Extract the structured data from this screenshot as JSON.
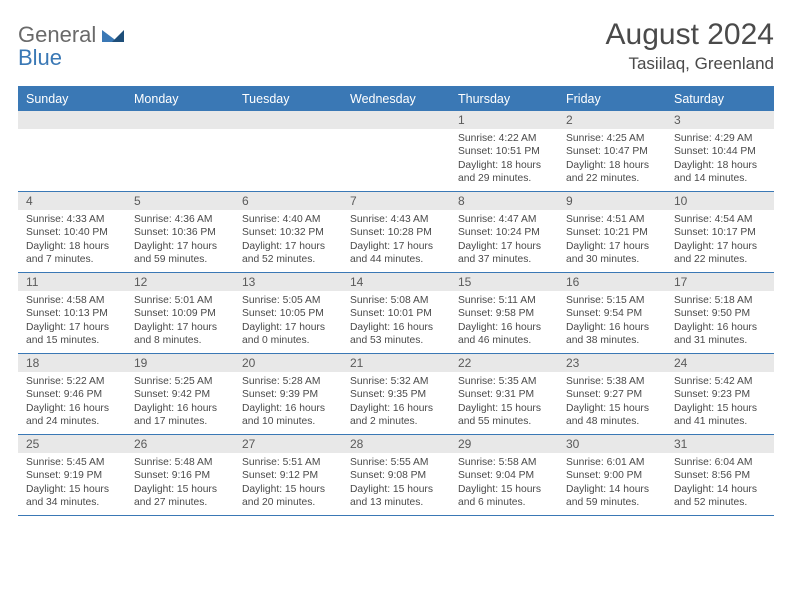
{
  "logo": {
    "general": "General",
    "blue": "Blue"
  },
  "title": "August 2024",
  "location": "Tasiilaq, Greenland",
  "colors": {
    "header_bg": "#3a78b5",
    "header_text": "#ffffff",
    "daynum_bg": "#e8e8e8",
    "border": "#3a78b5",
    "text": "#4a4a4a"
  },
  "dow": [
    "Sunday",
    "Monday",
    "Tuesday",
    "Wednesday",
    "Thursday",
    "Friday",
    "Saturday"
  ],
  "weeks": [
    [
      {
        "n": "",
        "s": "",
        "t": "",
        "d": ""
      },
      {
        "n": "",
        "s": "",
        "t": "",
        "d": ""
      },
      {
        "n": "",
        "s": "",
        "t": "",
        "d": ""
      },
      {
        "n": "",
        "s": "",
        "t": "",
        "d": ""
      },
      {
        "n": "1",
        "s": "Sunrise: 4:22 AM",
        "t": "Sunset: 10:51 PM",
        "d": "Daylight: 18 hours and 29 minutes."
      },
      {
        "n": "2",
        "s": "Sunrise: 4:25 AM",
        "t": "Sunset: 10:47 PM",
        "d": "Daylight: 18 hours and 22 minutes."
      },
      {
        "n": "3",
        "s": "Sunrise: 4:29 AM",
        "t": "Sunset: 10:44 PM",
        "d": "Daylight: 18 hours and 14 minutes."
      }
    ],
    [
      {
        "n": "4",
        "s": "Sunrise: 4:33 AM",
        "t": "Sunset: 10:40 PM",
        "d": "Daylight: 18 hours and 7 minutes."
      },
      {
        "n": "5",
        "s": "Sunrise: 4:36 AM",
        "t": "Sunset: 10:36 PM",
        "d": "Daylight: 17 hours and 59 minutes."
      },
      {
        "n": "6",
        "s": "Sunrise: 4:40 AM",
        "t": "Sunset: 10:32 PM",
        "d": "Daylight: 17 hours and 52 minutes."
      },
      {
        "n": "7",
        "s": "Sunrise: 4:43 AM",
        "t": "Sunset: 10:28 PM",
        "d": "Daylight: 17 hours and 44 minutes."
      },
      {
        "n": "8",
        "s": "Sunrise: 4:47 AM",
        "t": "Sunset: 10:24 PM",
        "d": "Daylight: 17 hours and 37 minutes."
      },
      {
        "n": "9",
        "s": "Sunrise: 4:51 AM",
        "t": "Sunset: 10:21 PM",
        "d": "Daylight: 17 hours and 30 minutes."
      },
      {
        "n": "10",
        "s": "Sunrise: 4:54 AM",
        "t": "Sunset: 10:17 PM",
        "d": "Daylight: 17 hours and 22 minutes."
      }
    ],
    [
      {
        "n": "11",
        "s": "Sunrise: 4:58 AM",
        "t": "Sunset: 10:13 PM",
        "d": "Daylight: 17 hours and 15 minutes."
      },
      {
        "n": "12",
        "s": "Sunrise: 5:01 AM",
        "t": "Sunset: 10:09 PM",
        "d": "Daylight: 17 hours and 8 minutes."
      },
      {
        "n": "13",
        "s": "Sunrise: 5:05 AM",
        "t": "Sunset: 10:05 PM",
        "d": "Daylight: 17 hours and 0 minutes."
      },
      {
        "n": "14",
        "s": "Sunrise: 5:08 AM",
        "t": "Sunset: 10:01 PM",
        "d": "Daylight: 16 hours and 53 minutes."
      },
      {
        "n": "15",
        "s": "Sunrise: 5:11 AM",
        "t": "Sunset: 9:58 PM",
        "d": "Daylight: 16 hours and 46 minutes."
      },
      {
        "n": "16",
        "s": "Sunrise: 5:15 AM",
        "t": "Sunset: 9:54 PM",
        "d": "Daylight: 16 hours and 38 minutes."
      },
      {
        "n": "17",
        "s": "Sunrise: 5:18 AM",
        "t": "Sunset: 9:50 PM",
        "d": "Daylight: 16 hours and 31 minutes."
      }
    ],
    [
      {
        "n": "18",
        "s": "Sunrise: 5:22 AM",
        "t": "Sunset: 9:46 PM",
        "d": "Daylight: 16 hours and 24 minutes."
      },
      {
        "n": "19",
        "s": "Sunrise: 5:25 AM",
        "t": "Sunset: 9:42 PM",
        "d": "Daylight: 16 hours and 17 minutes."
      },
      {
        "n": "20",
        "s": "Sunrise: 5:28 AM",
        "t": "Sunset: 9:39 PM",
        "d": "Daylight: 16 hours and 10 minutes."
      },
      {
        "n": "21",
        "s": "Sunrise: 5:32 AM",
        "t": "Sunset: 9:35 PM",
        "d": "Daylight: 16 hours and 2 minutes."
      },
      {
        "n": "22",
        "s": "Sunrise: 5:35 AM",
        "t": "Sunset: 9:31 PM",
        "d": "Daylight: 15 hours and 55 minutes."
      },
      {
        "n": "23",
        "s": "Sunrise: 5:38 AM",
        "t": "Sunset: 9:27 PM",
        "d": "Daylight: 15 hours and 48 minutes."
      },
      {
        "n": "24",
        "s": "Sunrise: 5:42 AM",
        "t": "Sunset: 9:23 PM",
        "d": "Daylight: 15 hours and 41 minutes."
      }
    ],
    [
      {
        "n": "25",
        "s": "Sunrise: 5:45 AM",
        "t": "Sunset: 9:19 PM",
        "d": "Daylight: 15 hours and 34 minutes."
      },
      {
        "n": "26",
        "s": "Sunrise: 5:48 AM",
        "t": "Sunset: 9:16 PM",
        "d": "Daylight: 15 hours and 27 minutes."
      },
      {
        "n": "27",
        "s": "Sunrise: 5:51 AM",
        "t": "Sunset: 9:12 PM",
        "d": "Daylight: 15 hours and 20 minutes."
      },
      {
        "n": "28",
        "s": "Sunrise: 5:55 AM",
        "t": "Sunset: 9:08 PM",
        "d": "Daylight: 15 hours and 13 minutes."
      },
      {
        "n": "29",
        "s": "Sunrise: 5:58 AM",
        "t": "Sunset: 9:04 PM",
        "d": "Daylight: 15 hours and 6 minutes."
      },
      {
        "n": "30",
        "s": "Sunrise: 6:01 AM",
        "t": "Sunset: 9:00 PM",
        "d": "Daylight: 14 hours and 59 minutes."
      },
      {
        "n": "31",
        "s": "Sunrise: 6:04 AM",
        "t": "Sunset: 8:56 PM",
        "d": "Daylight: 14 hours and 52 minutes."
      }
    ]
  ]
}
